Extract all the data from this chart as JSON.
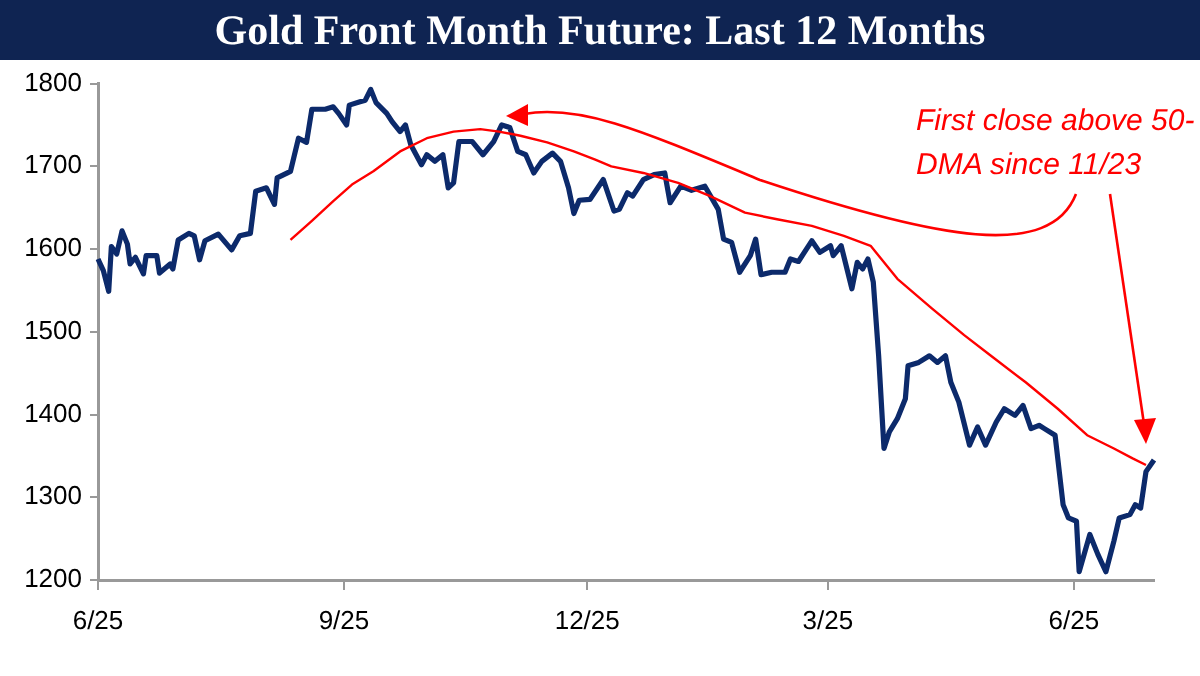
{
  "chart_data": {
    "type": "line",
    "title": "Gold Front Month Future: Last 12 Months",
    "categories": [
      "6/25",
      null,
      null,
      null,
      null,
      null,
      null,
      null,
      null,
      null,
      null,
      null,
      null,
      null,
      null,
      null,
      null,
      null,
      null,
      null,
      null,
      null,
      null,
      null,
      null,
      null,
      null,
      null,
      null,
      null,
      null,
      null,
      null,
      null,
      null,
      null,
      null,
      null,
      null,
      null,
      null,
      null,
      null,
      null,
      null,
      null,
      null,
      null,
      null,
      null,
      null,
      null,
      null,
      null,
      null,
      null,
      null,
      null,
      null,
      null,
      null,
      null,
      null,
      null,
      null,
      null,
      null,
      null,
      null,
      null,
      null,
      null,
      null,
      null,
      null,
      null,
      null,
      null,
      null,
      null,
      null,
      null,
      null,
      null,
      null,
      null,
      null,
      null,
      null,
      null,
      null,
      null,
      "9/25",
      null,
      null,
      null,
      null,
      null,
      null,
      null,
      null,
      null,
      null,
      null,
      null,
      null,
      null,
      null,
      null,
      null,
      null,
      null,
      null,
      null,
      null,
      null,
      null,
      null,
      null,
      null,
      null,
      null,
      null,
      null,
      null,
      null,
      null,
      null,
      null,
      null,
      null,
      null,
      null,
      null,
      null,
      null,
      null,
      null,
      null,
      null,
      null,
      null,
      null,
      null,
      null,
      null,
      null,
      null,
      null,
      null,
      null,
      null,
      null,
      null,
      null,
      null,
      null,
      null,
      null,
      null,
      null,
      null,
      null,
      null,
      null,
      null,
      null,
      null,
      null,
      null,
      null,
      null,
      null,
      null,
      null,
      null,
      null,
      null,
      null,
      null,
      null,
      null,
      null,
      "12/25",
      null,
      null,
      null,
      null,
      null,
      null,
      null,
      null,
      null,
      null,
      null,
      null,
      null,
      null,
      null,
      null,
      null,
      null,
      null,
      null,
      null,
      null,
      null,
      null,
      null,
      null,
      null,
      null,
      null,
      null,
      null,
      null,
      null,
      null,
      null,
      null,
      null,
      null,
      null,
      null,
      null,
      null,
      null,
      null,
      null,
      null,
      null,
      null,
      null,
      null,
      null,
      null,
      null,
      null,
      null,
      null,
      null,
      null,
      null,
      null,
      null,
      null,
      null,
      null,
      null,
      null,
      null,
      null,
      null,
      null,
      null,
      null,
      null,
      null,
      null,
      null,
      null,
      null,
      null,
      null,
      null,
      null,
      null,
      null,
      null,
      null,
      null,
      null,
      null,
      "3/25",
      null,
      null,
      null,
      null,
      null,
      null,
      null,
      null,
      null,
      null,
      null,
      null,
      null,
      null,
      null,
      null,
      null,
      null,
      null,
      null,
      null,
      null,
      null,
      null,
      null,
      null,
      null,
      null,
      null,
      null,
      null,
      null,
      null,
      null,
      null,
      null,
      null,
      null,
      null,
      null,
      null,
      null,
      null,
      null,
      null,
      null,
      null,
      null,
      null,
      null,
      null,
      null,
      null,
      null,
      null,
      null,
      null,
      null,
      null,
      null,
      null,
      null,
      null,
      null,
      null,
      null,
      null,
      null,
      null,
      null,
      null,
      null,
      null,
      null,
      null,
      null,
      null,
      null,
      null,
      null,
      null,
      null,
      null,
      null,
      null,
      null,
      null,
      null,
      null,
      null,
      null,
      "6/25",
      null,
      null,
      null,
      null,
      null,
      null,
      null,
      null,
      null,
      null,
      null,
      null,
      null,
      null,
      null,
      null,
      null,
      null,
      null,
      null,
      null,
      null,
      null,
      null,
      null,
      null,
      null,
      null,
      null,
      null
    ],
    "ylim": [
      1200,
      1800
    ],
    "yticks": [
      1200,
      1300,
      1400,
      1500,
      1600,
      1700,
      1800
    ],
    "grid": false,
    "legend": false,
    "marker": "none",
    "line_style": "solid",
    "annotations": [
      "First close above 50-DMA since 11/23"
    ],
    "series": [
      {
        "color": "#0c2a6b",
        "values": [
          1588,
          null,
          1574,
          null,
          1549,
          1603,
          null,
          1594,
          null,
          1622,
          null,
          1606,
          1582,
          null,
          1590,
          null,
          null,
          1570,
          1592,
          null,
          null,
          null,
          1592,
          1571,
          null,
          null,
          null,
          1582,
          1576,
          null,
          1611,
          null,
          null,
          null,
          1619,
          null,
          1616,
          null,
          1587,
          null,
          1610,
          null,
          null,
          null,
          null,
          1618,
          null,
          null,
          null,
          null,
          1599,
          null,
          null,
          1616,
          null,
          null,
          null,
          1619,
          null,
          1670,
          null,
          null,
          null,
          1674,
          null,
          null,
          1654,
          1686,
          null,
          null,
          null,
          null,
          1694,
          null,
          null,
          1734,
          null,
          null,
          1729,
          null,
          1769,
          null,
          null,
          null,
          null,
          1769,
          null,
          null,
          1772,
          null,
          1764,
          null,
          null,
          1750,
          1774,
          null,
          null,
          null,
          1778,
          null,
          1780,
          null,
          1793,
          null,
          1777,
          null,
          null,
          null,
          1764,
          null,
          1754,
          null,
          null,
          1742,
          null,
          1750,
          null,
          1726,
          null,
          null,
          null,
          1702,
          null,
          1714,
          null,
          null,
          1706,
          null,
          null,
          1714,
          null,
          1674,
          null,
          1680,
          null,
          1730,
          null,
          null,
          null,
          null,
          1730,
          null,
          null,
          null,
          1714,
          null,
          null,
          null,
          1730,
          null,
          null,
          1750,
          null,
          null,
          1747,
          null,
          null,
          1718,
          null,
          null,
          1714,
          null,
          null,
          1692,
          null,
          null,
          1706,
          null,
          null,
          null,
          1716,
          null,
          null,
          1706,
          null,
          null,
          1674,
          null,
          1643,
          null,
          1659,
          null,
          null,
          null,
          1660,
          null,
          null,
          null,
          null,
          1684,
          null,
          null,
          null,
          1646,
          null,
          1648,
          null,
          null,
          1668,
          null,
          1664,
          null,
          null,
          null,
          1684,
          null,
          null,
          null,
          1690,
          null,
          null,
          null,
          1692,
          null,
          1656,
          null,
          null,
          null,
          1676,
          null,
          null,
          null,
          1671,
          null,
          null,
          null,
          null,
          1676,
          null,
          null,
          null,
          null,
          1648,
          null,
          1612,
          null,
          null,
          1608,
          null,
          null,
          1572,
          null,
          null,
          null,
          1592,
          null,
          1612,
          null,
          1569,
          null,
          null,
          null,
          1572,
          null,
          null,
          null,
          null,
          1572,
          null,
          1588,
          null,
          null,
          1585,
          null,
          null,
          null,
          null,
          1610,
          null,
          null,
          1596,
          null,
          null,
          null,
          1604,
          1592,
          null,
          null,
          1604,
          null,
          null,
          null,
          1552,
          null,
          1584,
          null,
          1576,
          null,
          1588,
          null,
          1560,
          null,
          1471,
          null,
          1359,
          null,
          1379,
          null,
          null,
          1395,
          null,
          null,
          1419,
          1459,
          null,
          null,
          null,
          1463,
          null,
          null,
          null,
          1471,
          null,
          null,
          1463,
          null,
          null,
          1471,
          null,
          1439,
          null,
          null,
          1415,
          null,
          null,
          null,
          1363,
          null,
          null,
          1385,
          null,
          null,
          1363,
          null,
          null,
          null,
          1391,
          null,
          null,
          1407,
          null,
          null,
          null,
          1399,
          null,
          null,
          1411,
          null,
          null,
          1383,
          null,
          null,
          1387,
          null,
          1383,
          null,
          null,
          null,
          1375,
          null,
          null,
          1291,
          null,
          1275,
          null,
          null,
          1271,
          1210,
          null,
          null,
          null,
          1255,
          null,
          null,
          1231,
          null,
          null,
          1210,
          null,
          null,
          1247,
          null,
          1275,
          null,
          null,
          null,
          1279,
          null,
          1291,
          null,
          1287,
          null,
          1331,
          null,
          null,
          1345
        ]
      },
      {
        "color": "#ff0000",
        "values": [
          null,
          null,
          null,
          null,
          null,
          null,
          null,
          null,
          null,
          null,
          null,
          null,
          null,
          null,
          null,
          null,
          null,
          null,
          null,
          null,
          null,
          null,
          null,
          null,
          null,
          null,
          null,
          null,
          null,
          null,
          null,
          null,
          null,
          null,
          null,
          null,
          null,
          null,
          null,
          null,
          null,
          null,
          null,
          null,
          null,
          null,
          null,
          null,
          null,
          null,
          null,
          null,
          null,
          null,
          null,
          null,
          null,
          null,
          null,
          null,
          null,
          null,
          null,
          null,
          null,
          null,
          null,
          null,
          null,
          null,
          null,
          null,
          1611,
          null,
          null,
          null,
          null,
          null,
          null,
          null,
          1634,
          null,
          null,
          null,
          null,
          null,
          null,
          null,
          1658,
          null,
          null,
          null,
          null,
          null,
          null,
          1678,
          null,
          null,
          null,
          null,
          null,
          null,
          null,
          1694,
          null,
          null,
          null,
          null,
          null,
          null,
          null,
          null,
          null,
          1718,
          null,
          null,
          null,
          null,
          null,
          null,
          null,
          null,
          null,
          1734,
          null,
          null,
          null,
          null,
          null,
          null,
          null,
          null,
          null,
          1742,
          null,
          null,
          null,
          null,
          null,
          null,
          null,
          null,
          null,
          1745,
          null,
          null,
          null,
          null,
          null,
          null,
          1742,
          null,
          null,
          null,
          null,
          null,
          null,
          null,
          1737,
          null,
          null,
          null,
          null,
          null,
          null,
          null,
          null,
          null,
          1729,
          null,
          null,
          null,
          null,
          null,
          null,
          null,
          null,
          null,
          1718,
          null,
          null,
          null,
          null,
          null,
          null,
          null,
          1708,
          null,
          null,
          null,
          null,
          null,
          1700,
          null,
          null,
          null,
          null,
          null,
          null,
          null,
          null,
          null,
          null,
          null,
          1692,
          null,
          null,
          null,
          null,
          null,
          null,
          null,
          null,
          null,
          null,
          null,
          null,
          1680,
          null,
          null,
          null,
          null,
          null,
          null,
          null,
          null,
          null,
          null,
          null,
          1664,
          null,
          null,
          null,
          null,
          null,
          null,
          null,
          null,
          null,
          null,
          null,
          null,
          1644,
          null,
          null,
          null,
          null,
          null,
          null,
          null,
          null,
          null,
          null,
          null,
          1636,
          null,
          null,
          null,
          null,
          null,
          null,
          null,
          null,
          null,
          null,
          null,
          null,
          1628,
          null,
          null,
          null,
          null,
          null,
          null,
          null,
          null,
          null,
          null,
          null,
          1616,
          null,
          null,
          null,
          null,
          null,
          null,
          null,
          null,
          null,
          1604,
          null,
          null,
          null,
          null,
          null,
          null,
          null,
          null,
          null,
          1564,
          null,
          null,
          null,
          null,
          null,
          null,
          null,
          null,
          null,
          null,
          null,
          null,
          1528,
          null,
          null,
          null,
          null,
          null,
          null,
          null,
          null,
          null,
          null,
          null,
          1496,
          null,
          null,
          null,
          null,
          null,
          null,
          null,
          null,
          null,
          1471,
          null,
          null,
          null,
          null,
          null,
          null,
          null,
          null,
          null,
          null,
          null,
          null,
          1439,
          null,
          null,
          null,
          null,
          null,
          null,
          null,
          null,
          null,
          null,
          null,
          1407,
          null,
          null,
          null,
          null,
          null,
          null,
          null,
          null,
          null,
          null,
          1375,
          null,
          null,
          null,
          null,
          null,
          null,
          null,
          null,
          null,
          1359,
          null,
          null,
          null,
          null,
          null,
          null,
          1347,
          null,
          null,
          null,
          null,
          1339,
          null,
          null,
          null
        ]
      }
    ]
  }
}
